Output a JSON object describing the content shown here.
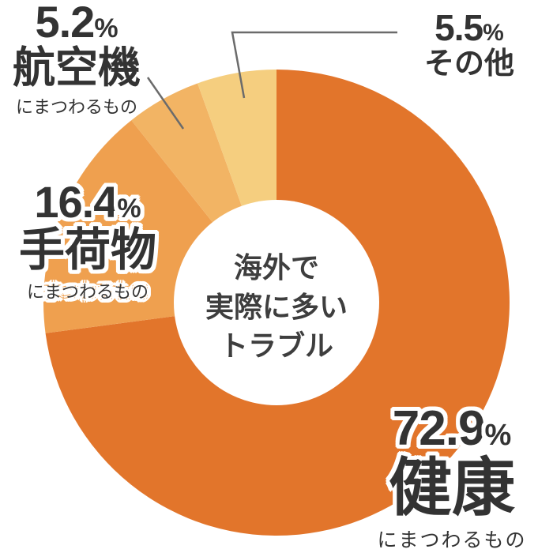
{
  "chart_data": {
    "type": "pie",
    "subtype": "donut",
    "title": "海外で実際に多いトラブル",
    "legend_position": "none",
    "direction": "clockwise",
    "start_angle_deg_from_top": 0,
    "segments": [
      {
        "key": "health",
        "label": "健康",
        "sublabel": "にまつわるもの",
        "value": 72.9,
        "color": "#e2752b"
      },
      {
        "key": "baggage",
        "label": "手荷物",
        "sublabel": "にまつわるもの",
        "value": 16.4,
        "color": "#efa04f"
      },
      {
        "key": "aircraft",
        "label": "航空機",
        "sublabel": "にまつわるもの",
        "value": 5.2,
        "color": "#f2b464"
      },
      {
        "key": "other",
        "label": "その他",
        "sublabel": "",
        "value": 5.5,
        "color": "#f5ce7f"
      }
    ]
  },
  "labels": {
    "aircraft": {
      "percent": "5.2",
      "percent_sign": "%",
      "name": "航空機",
      "suffix": "にまつわるもの"
    },
    "other": {
      "percent": "5.5",
      "percent_sign": "%",
      "name": "その他"
    },
    "baggage": {
      "percent": "16.4",
      "percent_sign": "%",
      "name": "手荷物",
      "suffix": "にまつわるもの"
    },
    "health": {
      "percent": "72.9",
      "percent_sign": "%",
      "name": "健康",
      "suffix": "にまつわるもの"
    }
  },
  "center": {
    "line1": "海外で",
    "line2": "実際に多い",
    "line3": "トラブル"
  },
  "colors": {
    "health": "#e2752b",
    "baggage": "#efa04f",
    "aircraft": "#f2b464",
    "other": "#f5ce7f",
    "label_text": "#333333",
    "center_text": "#3e3e3e",
    "leader_line": "#6b6b6b",
    "background": "#ffffff"
  }
}
